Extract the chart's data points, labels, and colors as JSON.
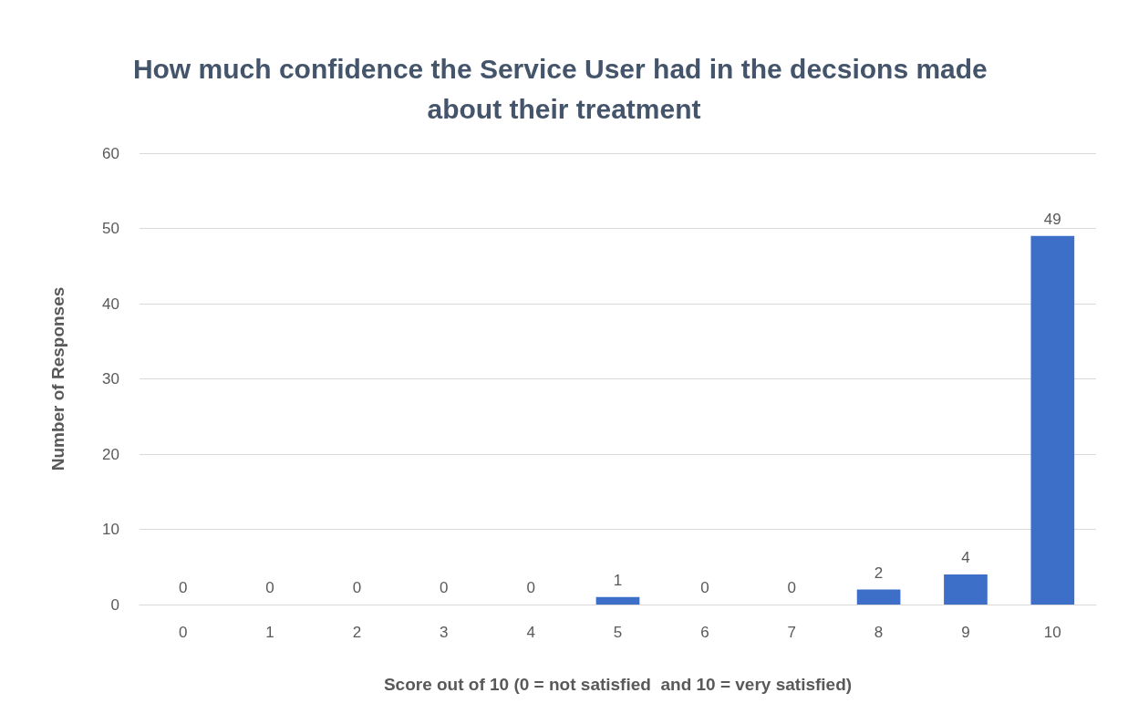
{
  "chart_data": {
    "type": "bar",
    "title": "How much confidence the Service User had in the decsions made about their treatment",
    "xlabel": "Score out of 10 (0 = not satisfied  and 10 = very satisfied)",
    "ylabel": "Number of Responses",
    "categories": [
      "0",
      "1",
      "2",
      "3",
      "4",
      "5",
      "6",
      "7",
      "8",
      "9",
      "10"
    ],
    "values": [
      0,
      0,
      0,
      0,
      0,
      1,
      0,
      0,
      2,
      4,
      49
    ],
    "color": "#3d6fc9",
    "ylim": [
      0,
      60
    ],
    "yticks": [
      0,
      10,
      20,
      30,
      40,
      50,
      60
    ],
    "grid": "y",
    "data_labels": true
  }
}
